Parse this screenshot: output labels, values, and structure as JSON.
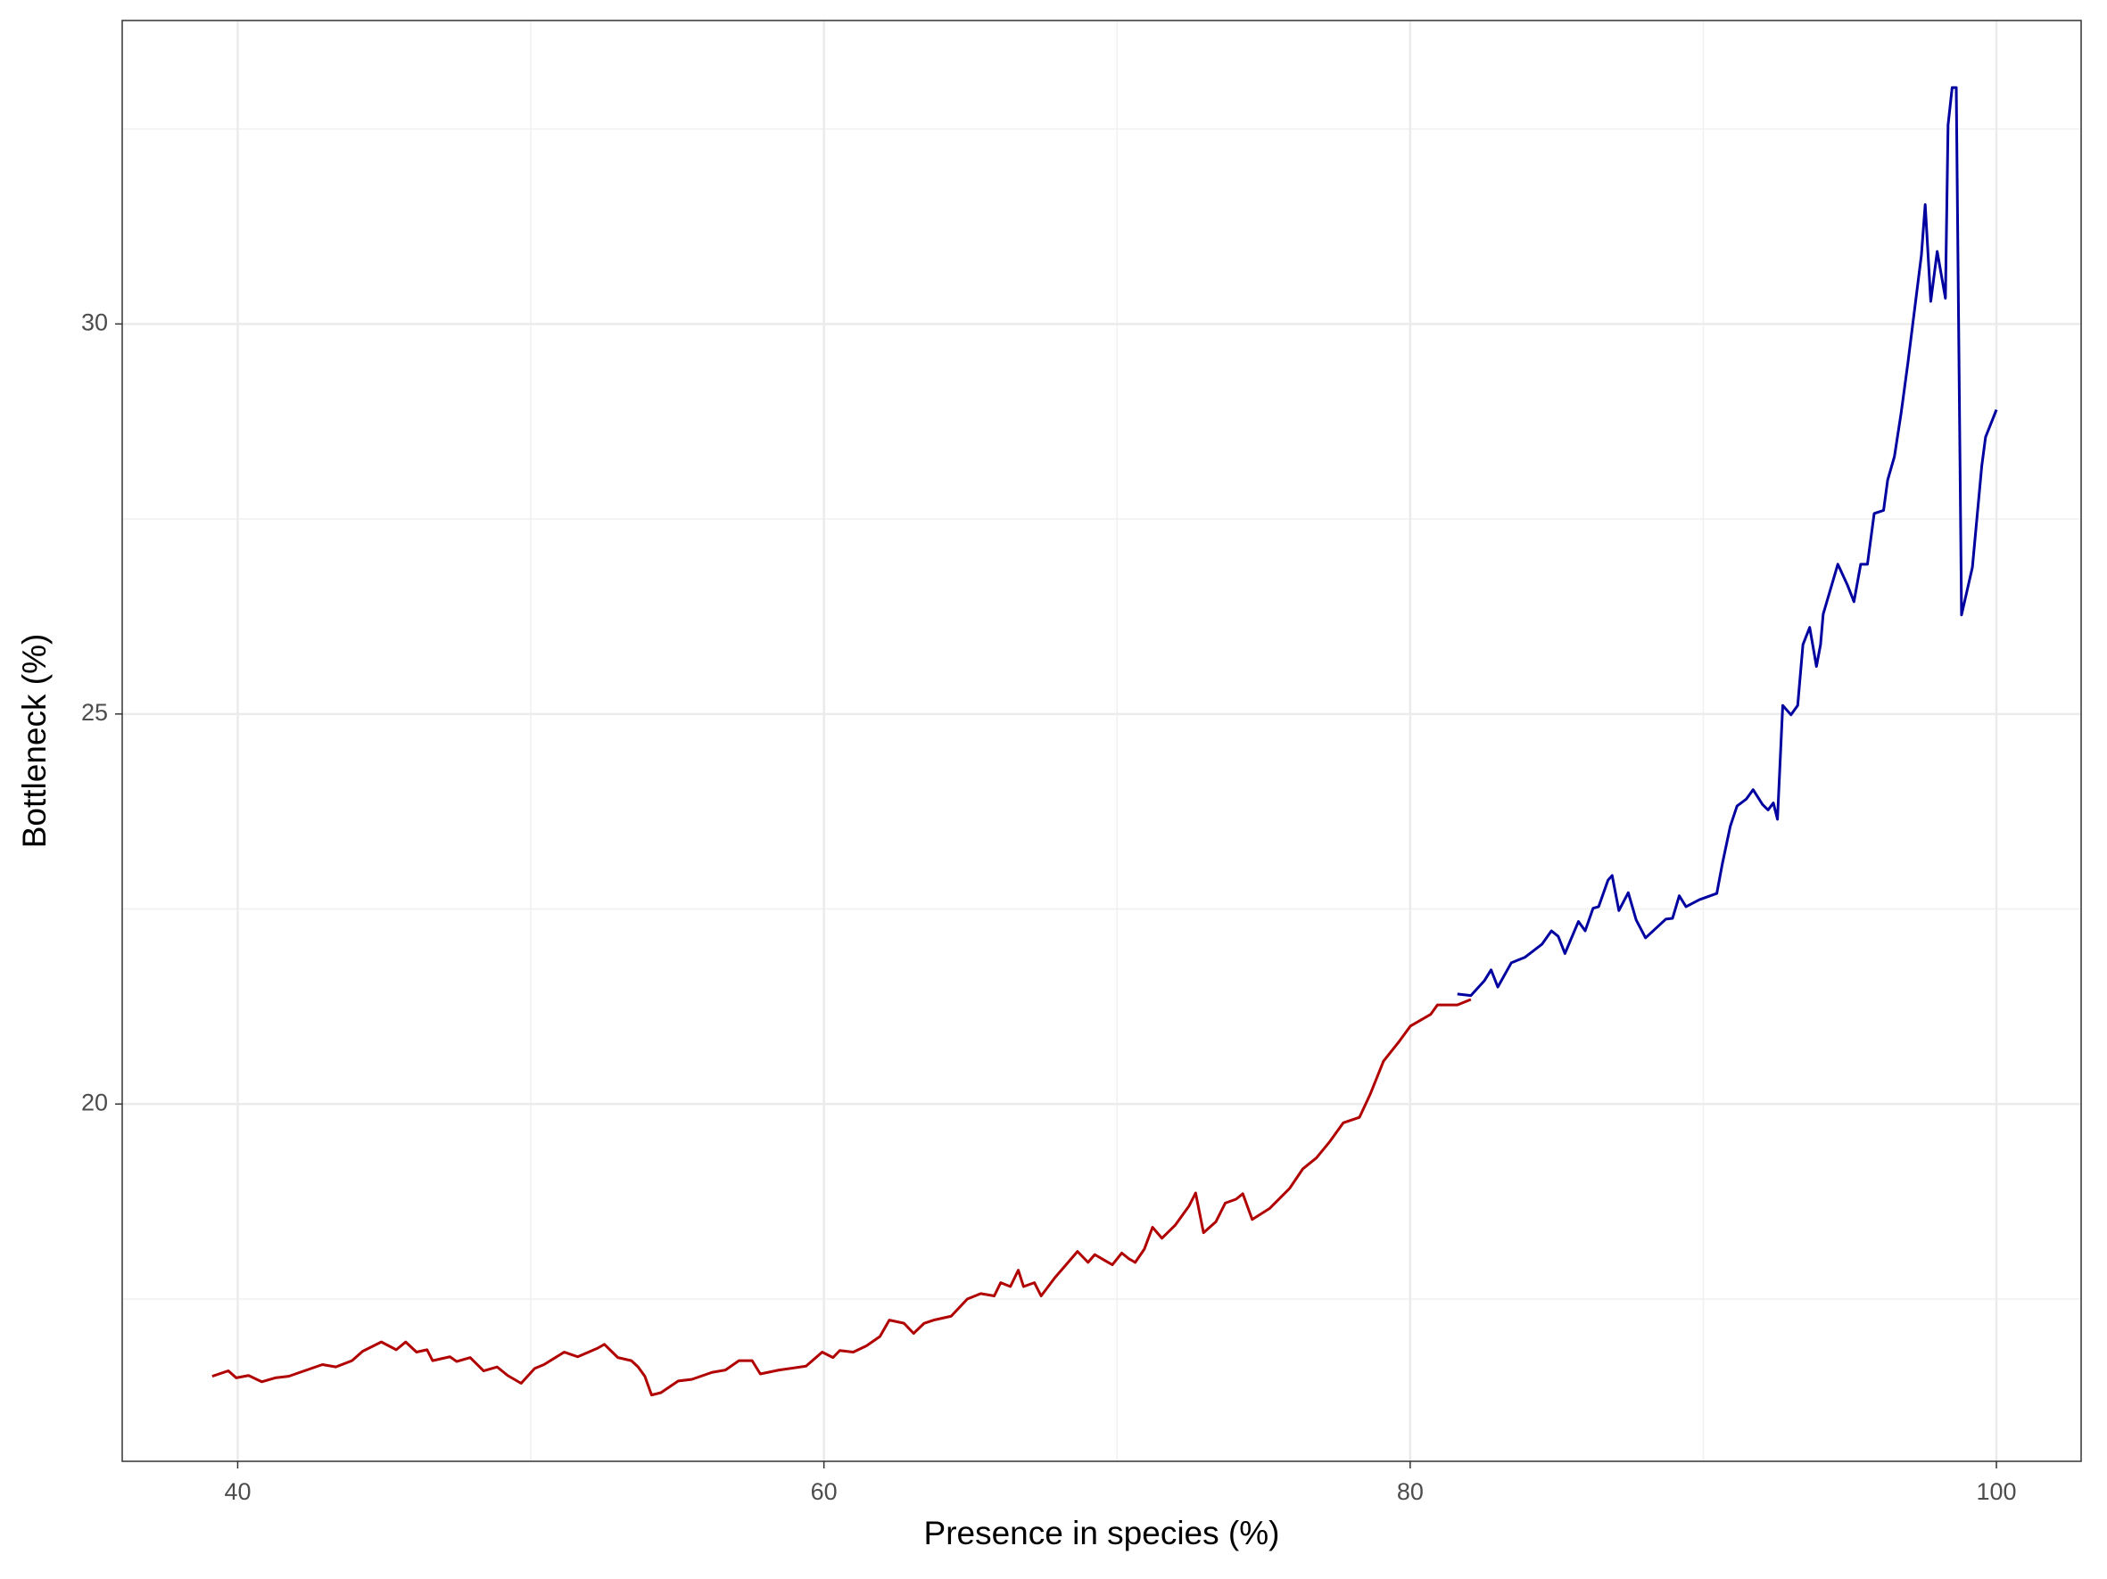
{
  "chart_data": {
    "type": "line",
    "x_label": "Presence in species (%)",
    "y_label": "Bottleneck (%)",
    "xlim": [
      36.06,
      102.89
    ],
    "ylim": [
      15.42,
      33.89
    ],
    "xticks": [
      40,
      60,
      80,
      100
    ],
    "yticks": [
      20,
      25,
      30
    ],
    "xminor": [
      50,
      70,
      90
    ],
    "yminor": [
      17.5,
      22.5,
      27.5,
      32.5
    ],
    "grid": true,
    "series": [
      {
        "color": "#b00000",
        "x": [
          39.13,
          39.68,
          39.95,
          40.37,
          40.82,
          41.28,
          41.74,
          42.89,
          43.35,
          43.9,
          44.26,
          44.9,
          45.41,
          45.73,
          46.1,
          46.46,
          46.65,
          47.24,
          47.47,
          47.93,
          48.39,
          48.85,
          49.21,
          49.67,
          50.13,
          50.45,
          51.14,
          51.6,
          52.28,
          52.51,
          52.97,
          53.43,
          53.66,
          53.89,
          54.12,
          54.44,
          55.03,
          55.49,
          56.18,
          56.64,
          57.1,
          57.55,
          57.83,
          58.47,
          59.39,
          59.94,
          60.31,
          60.54,
          61.0,
          61.45,
          61.91,
          62.23,
          62.73,
          63.06,
          63.42,
          63.74,
          64.34,
          64.89,
          65.35,
          65.81,
          66.03,
          66.36,
          66.63,
          66.81,
          67.18,
          67.41,
          67.87,
          68.33,
          68.65,
          69.01,
          69.24,
          69.56,
          69.84,
          70.16,
          70.39,
          70.62,
          70.93,
          71.21,
          71.53,
          71.99,
          72.45,
          72.68,
          72.95,
          73.37,
          73.69,
          74.06,
          74.29,
          74.61,
          75.2,
          75.89,
          76.34,
          76.8,
          77.26,
          77.72,
          78.27,
          78.63,
          79.09,
          79.64,
          80.01,
          80.7,
          80.93,
          81.61,
          82.07
        ],
        "values": [
          16.51,
          16.58,
          16.49,
          16.52,
          16.44,
          16.49,
          16.51,
          16.66,
          16.63,
          16.71,
          16.83,
          16.95,
          16.85,
          16.95,
          16.82,
          16.85,
          16.71,
          16.76,
          16.7,
          16.75,
          16.58,
          16.63,
          16.52,
          16.42,
          16.61,
          16.66,
          16.82,
          16.76,
          16.87,
          16.92,
          16.75,
          16.71,
          16.63,
          16.51,
          16.27,
          16.3,
          16.45,
          16.47,
          16.56,
          16.59,
          16.71,
          16.71,
          16.54,
          16.59,
          16.64,
          16.82,
          16.75,
          16.84,
          16.82,
          16.9,
          17.02,
          17.23,
          17.19,
          17.06,
          17.19,
          17.23,
          17.28,
          17.5,
          17.57,
          17.54,
          17.71,
          17.66,
          17.87,
          17.66,
          17.71,
          17.54,
          17.77,
          17.97,
          18.11,
          17.97,
          18.07,
          18.0,
          17.94,
          18.09,
          18.02,
          17.97,
          18.14,
          18.42,
          18.28,
          18.45,
          18.69,
          18.86,
          18.35,
          18.49,
          18.73,
          18.78,
          18.85,
          18.52,
          18.66,
          18.92,
          19.17,
          19.31,
          19.52,
          19.76,
          19.83,
          20.12,
          20.55,
          20.81,
          21.0,
          21.15,
          21.27,
          21.27,
          21.34
        ]
      },
      {
        "color": "#0000a0",
        "x": [
          81.61,
          82.07,
          82.53,
          82.76,
          82.99,
          83.45,
          83.91,
          84.5,
          84.82,
          85.05,
          85.28,
          85.74,
          85.97,
          86.24,
          86.43,
          86.75,
          86.89,
          87.12,
          87.44,
          87.71,
          88.03,
          88.72,
          88.95,
          89.18,
          89.41,
          89.87,
          90.46,
          90.65,
          90.92,
          91.15,
          91.47,
          91.7,
          92.02,
          92.21,
          92.39,
          92.53,
          92.71,
          92.99,
          93.22,
          93.4,
          93.63,
          93.86,
          94.0,
          94.09,
          94.59,
          94.91,
          95.14,
          95.37,
          95.6,
          95.83,
          96.15,
          96.29,
          96.52,
          96.75,
          96.98,
          97.21,
          97.44,
          97.57,
          97.76,
          97.98,
          98.26,
          98.35,
          98.49,
          98.63,
          98.81,
          99.18,
          99.5,
          99.63,
          100
        ],
        "values": [
          21.41,
          21.39,
          21.58,
          21.72,
          21.5,
          21.81,
          21.88,
          22.05,
          22.22,
          22.15,
          21.93,
          22.34,
          22.22,
          22.51,
          22.53,
          22.87,
          22.93,
          22.48,
          22.71,
          22.36,
          22.13,
          22.37,
          22.38,
          22.67,
          22.53,
          22.62,
          22.7,
          23.08,
          23.56,
          23.82,
          23.91,
          24.03,
          23.84,
          23.77,
          23.86,
          23.65,
          25.11,
          24.99,
          25.11,
          25.89,
          26.11,
          25.61,
          25.89,
          26.28,
          26.92,
          26.66,
          26.44,
          26.92,
          26.92,
          27.57,
          27.61,
          28.0,
          28.3,
          28.86,
          29.5,
          30.19,
          30.88,
          31.53,
          30.29,
          30.93,
          30.33,
          32.55,
          33.03,
          33.03,
          26.27,
          26.88,
          28.18,
          28.55,
          28.9
        ]
      }
    ]
  }
}
